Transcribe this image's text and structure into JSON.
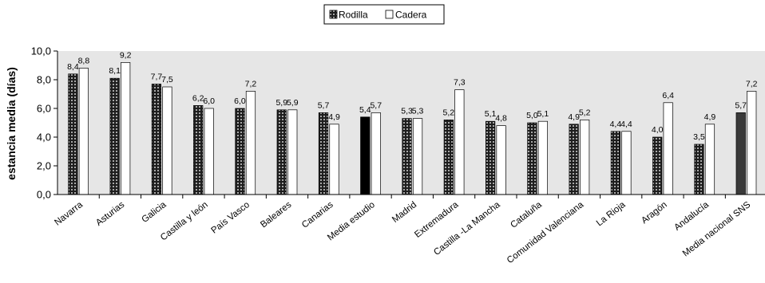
{
  "chart_data": {
    "type": "bar",
    "title": "",
    "xlabel": "",
    "ylabel": "estancia media (días)",
    "ylim": [
      0,
      10
    ],
    "yticks": [
      "0,0",
      "2,0",
      "4,0",
      "6,0",
      "8,0",
      "10,0"
    ],
    "grid": false,
    "legend_position": "top-center",
    "categories": [
      "Navarra",
      "Asturias",
      "Galicia",
      "Castilla y león",
      "País Vasco",
      "Baleares",
      "Canarias",
      "Media estudio",
      "Madrid",
      "Extremadura",
      "Castilla -La Mancha",
      "Cataluña",
      "Comunidad Valenciana",
      "La Rioja",
      "Aragón",
      "Andalucía",
      "Media nacional SNS"
    ],
    "series": [
      {
        "name": "Rodilla",
        "values": [
          8.4,
          8.1,
          7.7,
          6.2,
          6.0,
          5.9,
          5.7,
          5.4,
          5.3,
          5.2,
          5.1,
          5.0,
          4.9,
          4.4,
          4.0,
          3.5,
          5.7
        ],
        "labels": [
          "8,4",
          "8,1",
          "7,7",
          "6,2",
          "6,0",
          "5,9",
          "5,7",
          "5,4",
          "5,3",
          "5,2",
          "5,1",
          "5,0",
          "4,9",
          "4,4",
          "4,0",
          "3,5",
          "5,7"
        ]
      },
      {
        "name": "Cadera",
        "values": [
          8.8,
          9.2,
          7.5,
          6.0,
          7.2,
          5.9,
          4.9,
          5.7,
          5.3,
          7.3,
          4.8,
          5.1,
          5.2,
          4.4,
          6.4,
          4.9,
          7.2
        ],
        "labels": [
          "8,8",
          "9,2",
          "7,5",
          "6,0",
          "7,2",
          "5,9",
          "4,9",
          "5,7",
          "5,3",
          "7,3",
          "4,8",
          "5,1",
          "5,2",
          "4,4",
          "6,4",
          "4,9",
          "7,2"
        ]
      }
    ],
    "highlighted_categories": [
      "Media estudio",
      "Media nacional SNS"
    ],
    "colors": {
      "rodilla": "#4a4a4a",
      "cadera": "#ffffff",
      "highlight_estudio": "#000000",
      "highlight_sns": "#3a3a3a",
      "plot_background": "#e6e6e6"
    }
  }
}
